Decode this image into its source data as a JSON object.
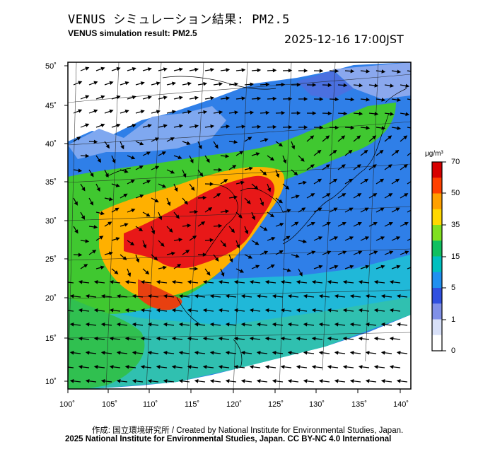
{
  "header": {
    "title_ja": "VENUS シミュレーション結果: PM2.5",
    "title_en": "VENUS simulation result: PM2.5",
    "timestamp": "2025-12-16 17:00JST"
  },
  "map": {
    "lat_labels": [
      "50˚",
      "45˚",
      "40˚",
      "35˚",
      "30˚",
      "25˚",
      "20˚",
      "15˚",
      "10˚"
    ],
    "lon_labels": [
      "100˚",
      "105˚",
      "110˚",
      "115˚",
      "120˚",
      "125˚",
      "130˚",
      "135˚",
      "140˚"
    ]
  },
  "colorbar": {
    "unit": "μg/m³",
    "ticks": [
      "70",
      "50",
      "35",
      "15",
      "5",
      "1",
      "0"
    ],
    "colors": [
      "#d70000",
      "#ff4000",
      "#ffa000",
      "#ffd800",
      "#80e020",
      "#10c060",
      "#00c0c0",
      "#2090f0",
      "#3050e0",
      "#8090e8",
      "#d8e0f8",
      "#ffffff"
    ]
  },
  "footer": {
    "credit_line": "作成: 国立環境研究所 / Created by National Institute for Environmental Studies, Japan.",
    "license_line": "2025 National Institute for Environmental Studies, Japan. CC BY-NC 4.0 International"
  }
}
